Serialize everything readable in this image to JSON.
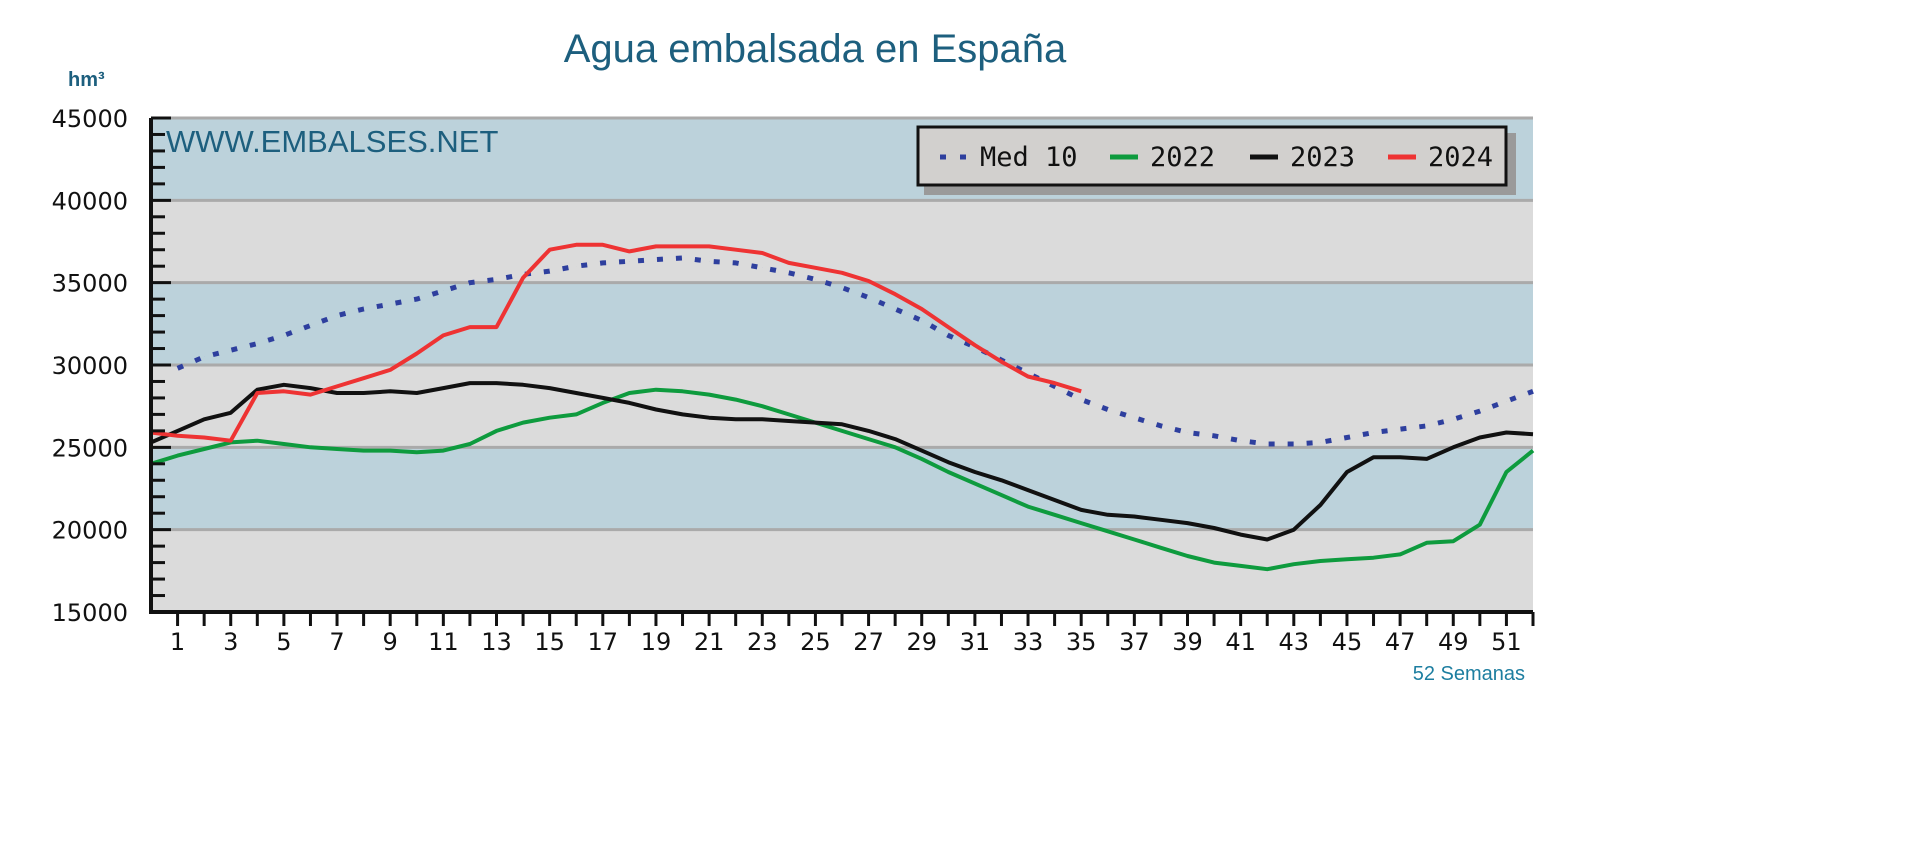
{
  "chart_data": {
    "type": "line",
    "title": "Agua embalsada en España",
    "ylabel": "hm³",
    "xlabel": "52 Semanas",
    "watermark": "WWW.EMBALSES.NET",
    "ylim": [
      15000,
      45000
    ],
    "xlim": [
      0,
      52
    ],
    "yticks": [
      15000,
      20000,
      25000,
      30000,
      35000,
      40000,
      45000
    ],
    "xticks": [
      1,
      3,
      5,
      7,
      9,
      11,
      13,
      15,
      17,
      19,
      21,
      23,
      25,
      27,
      29,
      31,
      33,
      35,
      37,
      39,
      41,
      43,
      45,
      47,
      49,
      51
    ],
    "grid": "alternating horizontal bands",
    "band_colors": [
      "#bcd2db",
      "#dbdbdb"
    ],
    "legend_position": "top-right",
    "series": [
      {
        "name": "Med 10",
        "color": "#2e3f9e",
        "style": "dotted",
        "x": [
          1,
          2,
          3,
          4,
          5,
          6,
          7,
          8,
          9,
          10,
          11,
          12,
          13,
          14,
          15,
          16,
          17,
          18,
          19,
          20,
          21,
          22,
          23,
          24,
          25,
          26,
          27,
          28,
          29,
          30,
          31,
          32,
          33,
          34,
          35,
          36,
          37,
          38,
          39,
          40,
          41,
          42,
          43,
          44,
          45,
          46,
          47,
          48,
          49,
          50,
          51,
          52
        ],
        "values": [
          29800,
          30500,
          30900,
          31300,
          31800,
          32400,
          33000,
          33400,
          33700,
          34000,
          34500,
          35000,
          35200,
          35500,
          35700,
          36000,
          36200,
          36300,
          36400,
          36500,
          36300,
          36200,
          35900,
          35600,
          35200,
          34700,
          34100,
          33400,
          32700,
          31800,
          31100,
          30300,
          29500,
          28700,
          27900,
          27300,
          26800,
          26300,
          25900,
          25700,
          25400,
          25200,
          25200,
          25300,
          25600,
          25900,
          26100,
          26300,
          26700,
          27200,
          27800,
          28400
        ]
      },
      {
        "name": "2022",
        "color": "#0e9b3e",
        "style": "solid",
        "x": [
          0,
          1,
          2,
          3,
          4,
          5,
          6,
          7,
          8,
          9,
          10,
          11,
          12,
          13,
          14,
          15,
          16,
          17,
          18,
          19,
          20,
          21,
          22,
          23,
          24,
          25,
          26,
          27,
          28,
          29,
          30,
          31,
          32,
          33,
          34,
          35,
          36,
          37,
          38,
          39,
          40,
          41,
          42,
          43,
          44,
          45,
          46,
          47,
          48,
          49,
          50,
          51,
          52
        ],
        "values": [
          24000,
          24500,
          24900,
          25300,
          25400,
          25200,
          25000,
          24900,
          24800,
          24800,
          24700,
          24800,
          25200,
          26000,
          26500,
          26800,
          27000,
          27700,
          28300,
          28500,
          28400,
          28200,
          27900,
          27500,
          27000,
          26500,
          26000,
          25500,
          25000,
          24300,
          23500,
          22800,
          22100,
          21400,
          20900,
          20400,
          19900,
          19400,
          18900,
          18400,
          18000,
          17800,
          17600,
          17900,
          18100,
          18200,
          18300,
          18500,
          19200,
          19300,
          20300,
          23500,
          24800
        ]
      },
      {
        "name": "2023",
        "color": "#111111",
        "style": "solid",
        "x": [
          0,
          1,
          2,
          3,
          4,
          5,
          6,
          7,
          8,
          9,
          10,
          11,
          12,
          13,
          14,
          15,
          16,
          17,
          18,
          19,
          20,
          21,
          22,
          23,
          24,
          25,
          26,
          27,
          28,
          29,
          30,
          31,
          32,
          33,
          34,
          35,
          36,
          37,
          38,
          39,
          40,
          41,
          42,
          43,
          44,
          45,
          46,
          47,
          48,
          49,
          50,
          51,
          52
        ],
        "values": [
          25300,
          26000,
          26700,
          27100,
          28500,
          28800,
          28600,
          28300,
          28300,
          28400,
          28300,
          28600,
          28900,
          28900,
          28800,
          28600,
          28300,
          28000,
          27700,
          27300,
          27000,
          26800,
          26700,
          26700,
          26600,
          26500,
          26400,
          26000,
          25500,
          24800,
          24100,
          23500,
          23000,
          22400,
          21800,
          21200,
          20900,
          20800,
          20600,
          20400,
          20100,
          19700,
          19400,
          20000,
          21500,
          23500,
          24400,
          24400,
          24300,
          25000,
          25600,
          25900,
          25800
        ]
      },
      {
        "name": "2024",
        "color": "#ee3333",
        "style": "solid",
        "x": [
          0,
          1,
          2,
          3,
          4,
          5,
          6,
          7,
          8,
          9,
          10,
          11,
          12,
          13,
          14,
          15,
          16,
          17,
          18,
          19,
          20,
          21,
          22,
          23,
          24,
          25,
          26,
          27,
          28,
          29,
          30,
          31,
          32,
          33,
          34,
          35
        ],
        "values": [
          25900,
          25700,
          25600,
          25400,
          28300,
          28400,
          28200,
          28700,
          29200,
          29700,
          30700,
          31800,
          32300,
          32300,
          35300,
          37000,
          37300,
          37300,
          36900,
          37200,
          37200,
          37200,
          37000,
          36800,
          36200,
          35900,
          35600,
          35100,
          34300,
          33400,
          32300,
          31200,
          30200,
          29300,
          28900,
          28400
        ]
      }
    ]
  }
}
